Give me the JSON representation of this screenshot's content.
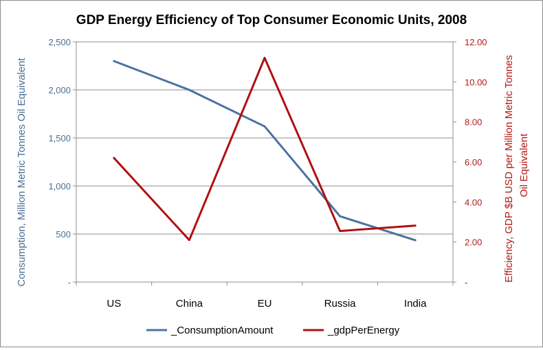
{
  "chart_data": {
    "type": "line",
    "title": "GDP Energy Efficiency of Top Consumer Economic Units, 2008",
    "categories": [
      "US",
      "China",
      "EU",
      "Russia",
      "India"
    ],
    "y_left": {
      "label": "Consumption, Million Metric Tonnes Oil Equivalent",
      "range": [
        0,
        2500
      ],
      "ticks": [
        {
          "value": 0,
          "label": "-"
        },
        {
          "value": 500,
          "label": "500"
        },
        {
          "value": 1000,
          "label": "1,000"
        },
        {
          "value": 1500,
          "label": "1,500"
        },
        {
          "value": 2000,
          "label": "2,000"
        },
        {
          "value": 2500,
          "label": "2,500"
        }
      ],
      "color": "#4a6f96"
    },
    "y_right": {
      "label_lines": [
        "Efficiency, GDP $B USD per Million Metric Tonnes",
        "Oil Equivalent"
      ],
      "range": [
        0,
        12
      ],
      "ticks": [
        {
          "value": 0,
          "label": "-"
        },
        {
          "value": 2,
          "label": "2.00"
        },
        {
          "value": 4,
          "label": "4.00"
        },
        {
          "value": 6,
          "label": "6.00"
        },
        {
          "value": 8,
          "label": "8.00"
        },
        {
          "value": 10,
          "label": "10.00"
        },
        {
          "value": 12,
          "label": "12.00"
        }
      ],
      "color": "#b41818"
    },
    "series": [
      {
        "name": "_ConsumptionAmount",
        "axis": "left",
        "color": "#4a72a0",
        "values": [
          2300,
          2000,
          1620,
          685,
          435
        ]
      },
      {
        "name": "_gdpPerEnergy",
        "axis": "right",
        "color": "#b01010",
        "values": [
          6.2,
          2.1,
          11.2,
          2.55,
          2.82
        ]
      }
    ],
    "grid": true,
    "legend_position": "bottom"
  }
}
